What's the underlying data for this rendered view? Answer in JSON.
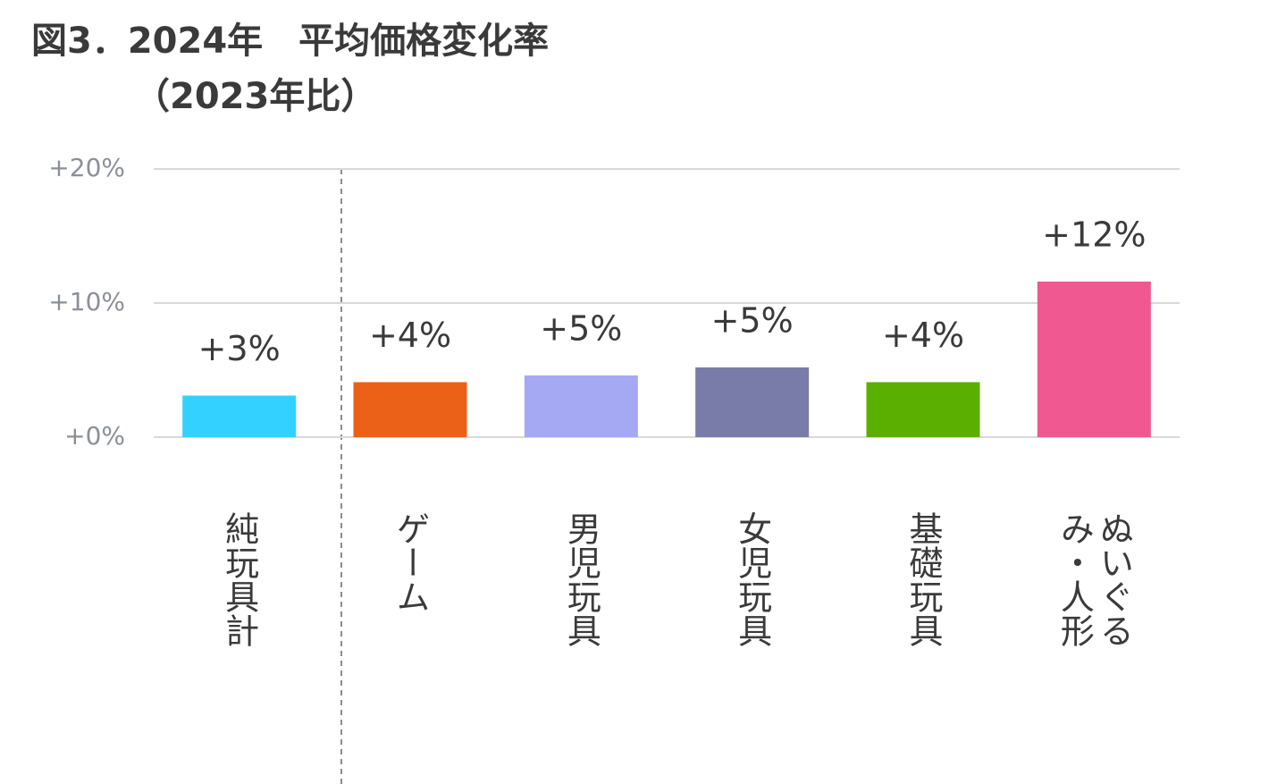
{
  "chart_data": {
    "type": "bar",
    "title": "図3．2024年　平均価格変化率",
    "subtitle": "（2023年比）",
    "categories": [
      "純玩具計",
      "ゲーム",
      "男児玩具",
      "女児玩具",
      "基礎玩具",
      "ぬいぐるみ・人形"
    ],
    "values": [
      3.1,
      4.1,
      4.6,
      5.2,
      4.1,
      11.6
    ],
    "value_labels": [
      "+3%",
      "+4%",
      "+5%",
      "+5%",
      "+4%",
      "+12%"
    ],
    "colors": [
      "#33d1ff",
      "#ec6118",
      "#a5a9f4",
      "#797ca8",
      "#5aaf00",
      "#ef5890"
    ],
    "ylim": [
      0,
      20
    ],
    "yticks": [
      {
        "value": 0,
        "label": "+0%"
      },
      {
        "value": 10,
        "label": "+10%"
      },
      {
        "value": 20,
        "label": "+20%"
      }
    ],
    "grid": true
  }
}
